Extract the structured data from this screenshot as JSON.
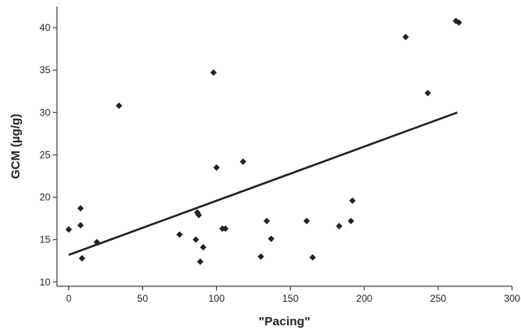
{
  "chart_data": {
    "type": "scatter",
    "title": "",
    "xlabel": "\"Pacing\"",
    "ylabel": "GCM (µg/g)",
    "xlim": [
      -8,
      300
    ],
    "ylim": [
      9.5,
      42.5
    ],
    "xticks": [
      0,
      50,
      100,
      150,
      200,
      250,
      300
    ],
    "yticks": [
      10,
      15,
      20,
      25,
      30,
      35,
      40
    ],
    "grid": false,
    "legend": "none",
    "colors": {
      "points": "#222222",
      "line": "#222222",
      "axis": "#444444"
    },
    "points": [
      {
        "x": 0,
        "y": 16.2
      },
      {
        "x": 8,
        "y": 18.7
      },
      {
        "x": 8,
        "y": 16.7
      },
      {
        "x": 9,
        "y": 12.8
      },
      {
        "x": 19,
        "y": 14.7
      },
      {
        "x": 34,
        "y": 30.8
      },
      {
        "x": 75,
        "y": 15.6
      },
      {
        "x": 86,
        "y": 15.0
      },
      {
        "x": 87,
        "y": 18.2
      },
      {
        "x": 88,
        "y": 17.9
      },
      {
        "x": 89,
        "y": 12.4
      },
      {
        "x": 91,
        "y": 14.1
      },
      {
        "x": 98,
        "y": 34.7
      },
      {
        "x": 100,
        "y": 23.5
      },
      {
        "x": 104,
        "y": 16.3
      },
      {
        "x": 106,
        "y": 16.3
      },
      {
        "x": 118,
        "y": 24.2
      },
      {
        "x": 130,
        "y": 13.0
      },
      {
        "x": 134,
        "y": 17.2
      },
      {
        "x": 137,
        "y": 15.1
      },
      {
        "x": 161,
        "y": 17.2
      },
      {
        "x": 165,
        "y": 12.9
      },
      {
        "x": 183,
        "y": 16.6
      },
      {
        "x": 191,
        "y": 17.2
      },
      {
        "x": 192,
        "y": 19.6
      },
      {
        "x": 228,
        "y": 38.9
      },
      {
        "x": 243,
        "y": 32.3
      },
      {
        "x": 262,
        "y": 40.8
      },
      {
        "x": 264,
        "y": 40.6
      }
    ],
    "trendline": {
      "x": [
        0,
        263
      ],
      "y": [
        13.2,
        30.0
      ]
    }
  }
}
